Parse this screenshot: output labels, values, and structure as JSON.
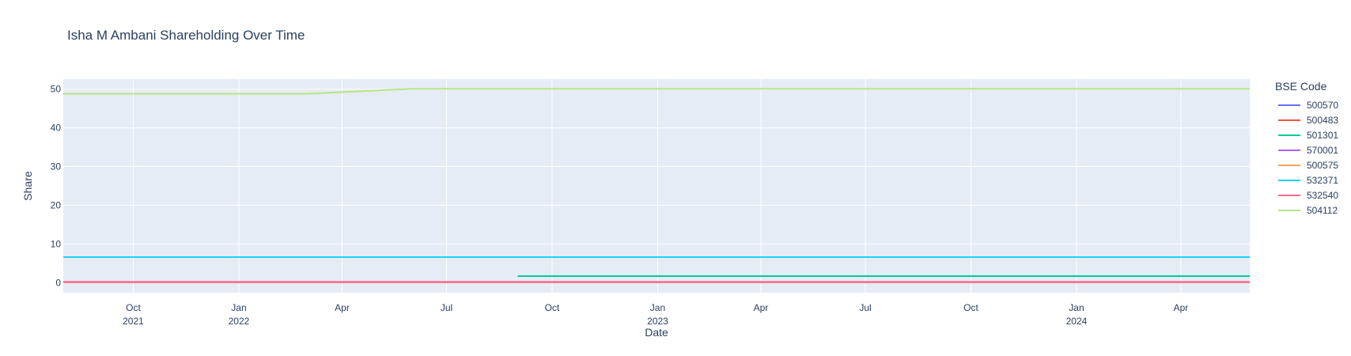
{
  "chart_data": {
    "type": "line",
    "title": "Isha M Ambani Shareholding Over Time",
    "xlabel": "Date",
    "ylabel": "Share",
    "xlim": [
      "2021-08-01",
      "2024-05-31"
    ],
    "ylim": [
      -2.6,
      52.6
    ],
    "y_ticks": [
      0,
      10,
      20,
      30,
      40,
      50
    ],
    "x_ticks": [
      {
        "date": "2021-10-01",
        "label": "Oct",
        "sublabel": "2021"
      },
      {
        "date": "2022-01-01",
        "label": "Jan",
        "sublabel": "2022"
      },
      {
        "date": "2022-04-01",
        "label": "Apr",
        "sublabel": ""
      },
      {
        "date": "2022-07-01",
        "label": "Jul",
        "sublabel": ""
      },
      {
        "date": "2022-10-01",
        "label": "Oct",
        "sublabel": ""
      },
      {
        "date": "2023-01-01",
        "label": "Jan",
        "sublabel": "2023"
      },
      {
        "date": "2023-04-01",
        "label": "Apr",
        "sublabel": ""
      },
      {
        "date": "2023-07-01",
        "label": "Jul",
        "sublabel": ""
      },
      {
        "date": "2023-10-01",
        "label": "Oct",
        "sublabel": ""
      },
      {
        "date": "2024-01-01",
        "label": "Jan",
        "sublabel": "2024"
      },
      {
        "date": "2024-04-01",
        "label": "Apr",
        "sublabel": ""
      }
    ],
    "grid": true,
    "legend": {
      "title": "BSE Code",
      "placement": "right"
    },
    "series": [
      {
        "name": "500570",
        "color": "#636efa",
        "points": [
          [
            "2021-08-01",
            0.1
          ],
          [
            "2024-05-31",
            0.1
          ]
        ]
      },
      {
        "name": "500483",
        "color": "#EF553B",
        "points": [
          [
            "2021-08-01",
            0.1
          ],
          [
            "2024-05-31",
            0.1
          ]
        ]
      },
      {
        "name": "501301",
        "color": "#00cc96",
        "points": [
          [
            "2022-09-01",
            1.7
          ],
          [
            "2024-05-31",
            1.7
          ]
        ]
      },
      {
        "name": "570001",
        "color": "#ab63fa",
        "points": [
          [
            "2021-08-01",
            0.1
          ],
          [
            "2024-05-31",
            0.1
          ]
        ]
      },
      {
        "name": "500575",
        "color": "#FFA15A",
        "points": [
          [
            "2021-08-01",
            0.1
          ],
          [
            "2024-05-31",
            0.1
          ]
        ]
      },
      {
        "name": "532371",
        "color": "#19d3f3",
        "points": [
          [
            "2021-08-01",
            6.6
          ],
          [
            "2024-05-31",
            6.6
          ]
        ]
      },
      {
        "name": "532540",
        "color": "#FF6692",
        "points": [
          [
            "2021-08-01",
            0.2
          ],
          [
            "2022-06-01",
            0.2
          ],
          [
            "2024-05-31",
            0.2
          ]
        ]
      },
      {
        "name": "504112",
        "color": "#B6E880",
        "points": [
          [
            "2021-08-01",
            48.8
          ],
          [
            "2022-03-01",
            48.8
          ],
          [
            "2022-06-01",
            50.1
          ],
          [
            "2024-05-31",
            50.1
          ]
        ]
      }
    ]
  }
}
